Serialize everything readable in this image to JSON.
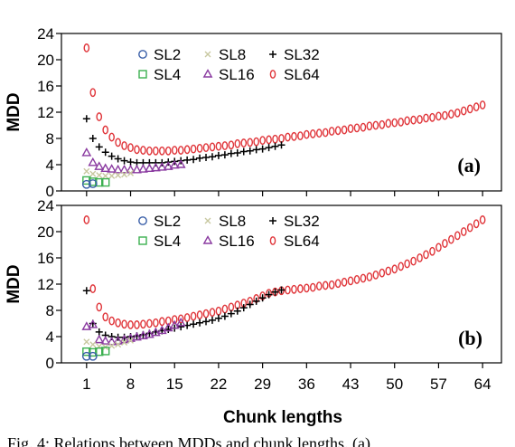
{
  "figure": {
    "xlabel": "Chunk lengths",
    "caption": "Fig. 4: Relations between MDDs and chunk lengths. (a)"
  },
  "chart_data": [
    {
      "type": "scatter",
      "panel": "(a)",
      "ylabel": "MDD",
      "xlim": [
        -3,
        67
      ],
      "ylim": [
        0,
        24
      ],
      "xticks": [
        1,
        8,
        15,
        22,
        29,
        36,
        43,
        50,
        57,
        64
      ],
      "yticks": [
        0,
        4,
        8,
        12,
        16,
        20,
        24
      ],
      "legend_position": "top-left",
      "series": [
        {
          "name": "SL2",
          "marker": "circle",
          "color": "#3a5fa8",
          "x": [
            1,
            2
          ],
          "y": [
            1.0,
            1.1
          ]
        },
        {
          "name": "SL4",
          "marker": "square",
          "color": "#3cb050",
          "x": [
            1,
            2,
            3,
            4
          ],
          "y": [
            1.6,
            1.4,
            1.3,
            1.3
          ]
        },
        {
          "name": "SL8",
          "marker": "x",
          "color": "#c8c8a0",
          "x": [
            1,
            2,
            3,
            4,
            5,
            6,
            7,
            8
          ],
          "y": [
            3.0,
            2.6,
            2.4,
            2.3,
            2.3,
            2.4,
            2.5,
            2.7
          ]
        },
        {
          "name": "SL16",
          "marker": "triangle",
          "color": "#8a3aa0",
          "x": [
            1,
            2,
            3,
            4,
            5,
            6,
            7,
            8,
            9,
            10,
            11,
            12,
            13,
            14,
            15,
            16
          ],
          "y": [
            5.8,
            4.3,
            3.7,
            3.4,
            3.3,
            3.2,
            3.2,
            3.2,
            3.2,
            3.3,
            3.4,
            3.5,
            3.6,
            3.7,
            3.9,
            4.0
          ]
        },
        {
          "name": "SL32",
          "marker": "plus",
          "color": "#000000",
          "x": [
            1,
            2,
            3,
            4,
            5,
            6,
            7,
            8,
            9,
            10,
            11,
            12,
            13,
            14,
            15,
            16,
            17,
            18,
            19,
            20,
            21,
            22,
            23,
            24,
            25,
            26,
            27,
            28,
            29,
            30,
            31,
            32
          ],
          "y": [
            11.0,
            8.0,
            6.7,
            5.9,
            5.3,
            4.9,
            4.6,
            4.4,
            4.3,
            4.3,
            4.3,
            4.3,
            4.3,
            4.4,
            4.5,
            4.6,
            4.7,
            4.8,
            5.0,
            5.1,
            5.2,
            5.4,
            5.5,
            5.7,
            5.8,
            6.0,
            6.1,
            6.3,
            6.4,
            6.6,
            6.8,
            7.0
          ]
        },
        {
          "name": "SL64",
          "marker": "ellipse",
          "color": "#e0353a",
          "x": [
            1,
            2,
            3,
            4,
            5,
            6,
            7,
            8,
            9,
            10,
            11,
            12,
            13,
            14,
            15,
            16,
            17,
            18,
            19,
            20,
            21,
            22,
            23,
            24,
            25,
            26,
            27,
            28,
            29,
            30,
            31,
            32,
            33,
            34,
            35,
            36,
            37,
            38,
            39,
            40,
            41,
            42,
            43,
            44,
            45,
            46,
            47,
            48,
            49,
            50,
            51,
            52,
            53,
            54,
            55,
            56,
            57,
            58,
            59,
            60,
            61,
            62,
            63,
            64
          ],
          "y": [
            21.8,
            15.0,
            11.3,
            9.3,
            8.2,
            7.4,
            6.9,
            6.6,
            6.3,
            6.2,
            6.1,
            6.1,
            6.1,
            6.1,
            6.2,
            6.2,
            6.3,
            6.4,
            6.5,
            6.6,
            6.7,
            6.8,
            6.9,
            7.0,
            7.2,
            7.3,
            7.4,
            7.5,
            7.7,
            7.8,
            7.9,
            8.0,
            8.2,
            8.3,
            8.4,
            8.6,
            8.7,
            8.8,
            8.9,
            9.1,
            9.2,
            9.3,
            9.5,
            9.6,
            9.7,
            9.9,
            10.0,
            10.1,
            10.3,
            10.4,
            10.5,
            10.7,
            10.8,
            10.9,
            11.1,
            11.2,
            11.4,
            11.5,
            11.7,
            11.9,
            12.2,
            12.5,
            12.8,
            13.1
          ]
        }
      ]
    },
    {
      "type": "scatter",
      "panel": "(b)",
      "ylabel": "MDD",
      "xlim": [
        -3,
        67
      ],
      "ylim": [
        0,
        24
      ],
      "xticks": [
        1,
        8,
        15,
        22,
        29,
        36,
        43,
        50,
        57,
        64
      ],
      "yticks": [
        0,
        4,
        8,
        12,
        16,
        20,
        24
      ],
      "legend_position": "top-left",
      "series": [
        {
          "name": "SL2",
          "marker": "circle",
          "color": "#3a5fa8",
          "x": [
            1,
            2
          ],
          "y": [
            1.0,
            1.0
          ]
        },
        {
          "name": "SL4",
          "marker": "square",
          "color": "#3cb050",
          "x": [
            1,
            2,
            3,
            4
          ],
          "y": [
            1.7,
            1.6,
            1.7,
            1.8
          ]
        },
        {
          "name": "SL8",
          "marker": "x",
          "color": "#c8c8a0",
          "x": [
            1,
            2,
            3,
            4,
            5,
            6,
            7,
            8
          ],
          "y": [
            3.2,
            2.8,
            2.5,
            2.4,
            2.6,
            2.8,
            3.1,
            3.4
          ]
        },
        {
          "name": "SL16",
          "marker": "triangle",
          "color": "#8a3aa0",
          "x": [
            1,
            2,
            3,
            4,
            5,
            6,
            7,
            8,
            9,
            10,
            11,
            12,
            13,
            14,
            15,
            16
          ],
          "y": [
            5.5,
            5.8,
            3.5,
            3.3,
            3.2,
            3.3,
            3.5,
            3.7,
            3.9,
            4.1,
            4.3,
            4.6,
            4.9,
            5.3,
            5.7,
            6.1
          ]
        },
        {
          "name": "SL32",
          "marker": "plus",
          "color": "#000000",
          "x": [
            1,
            2,
            3,
            4,
            5,
            6,
            7,
            8,
            9,
            10,
            11,
            12,
            13,
            14,
            15,
            16,
            17,
            18,
            19,
            20,
            21,
            22,
            23,
            24,
            25,
            26,
            27,
            28,
            29,
            30,
            31,
            32
          ],
          "y": [
            11.0,
            6.0,
            4.7,
            4.2,
            4.0,
            3.9,
            3.9,
            4.0,
            4.1,
            4.3,
            4.5,
            4.7,
            4.9,
            5.1,
            5.3,
            5.5,
            5.7,
            5.9,
            6.1,
            6.3,
            6.5,
            6.8,
            7.1,
            7.5,
            7.9,
            8.4,
            8.9,
            9.4,
            9.9,
            10.4,
            10.8,
            11.1
          ]
        },
        {
          "name": "SL64",
          "marker": "ellipse",
          "color": "#e0353a",
          "x": [
            1,
            2,
            3,
            4,
            5,
            6,
            7,
            8,
            9,
            10,
            11,
            12,
            13,
            14,
            15,
            16,
            17,
            18,
            19,
            20,
            21,
            22,
            23,
            24,
            25,
            26,
            27,
            28,
            29,
            30,
            31,
            32,
            33,
            34,
            35,
            36,
            37,
            38,
            39,
            40,
            41,
            42,
            43,
            44,
            45,
            46,
            47,
            48,
            49,
            50,
            51,
            52,
            53,
            54,
            55,
            56,
            57,
            58,
            59,
            60,
            61,
            62,
            63,
            64
          ],
          "y": [
            21.8,
            11.3,
            8.5,
            7.0,
            6.4,
            6.1,
            5.9,
            5.8,
            5.8,
            5.9,
            6.0,
            6.1,
            6.3,
            6.4,
            6.6,
            6.7,
            6.9,
            7.1,
            7.3,
            7.5,
            7.7,
            7.9,
            8.2,
            8.5,
            8.8,
            9.1,
            9.4,
            9.8,
            10.2,
            10.6,
            10.8,
            11.0,
            11.1,
            11.2,
            11.3,
            11.4,
            11.5,
            11.7,
            11.8,
            11.9,
            12.1,
            12.3,
            12.5,
            12.7,
            12.9,
            13.1,
            13.4,
            13.7,
            14.0,
            14.3,
            14.7,
            15.1,
            15.5,
            16.0,
            16.5,
            17.0,
            17.6,
            18.2,
            18.8,
            19.4,
            20.0,
            20.6,
            21.2,
            21.8
          ]
        }
      ]
    }
  ]
}
